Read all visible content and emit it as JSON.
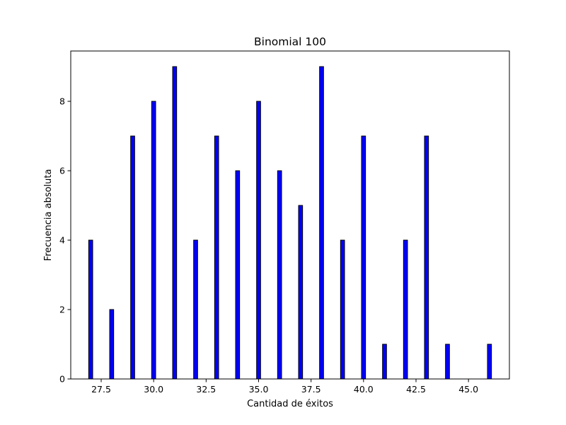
{
  "chart_data": {
    "type": "bar",
    "title": "Binomial 100",
    "xlabel": "Cantidad de éxitos",
    "ylabel": "Frecuencia absoluta",
    "x": [
      27,
      28,
      29,
      30,
      31,
      32,
      33,
      34,
      35,
      36,
      37,
      38,
      39,
      40,
      41,
      42,
      43,
      44,
      46
    ],
    "values": [
      4,
      2,
      7,
      8,
      9,
      4,
      7,
      6,
      8,
      6,
      5,
      9,
      4,
      7,
      1,
      4,
      7,
      1,
      1
    ],
    "xlim": [
      26.05,
      46.95
    ],
    "ylim": [
      0,
      9.45
    ],
    "xticks": [
      27.5,
      30,
      32.5,
      35,
      37.5,
      40,
      42.5,
      45
    ],
    "xtick_labels": [
      "27.5",
      "30.0",
      "32.5",
      "35.0",
      "37.5",
      "40.0",
      "42.5",
      "45.0"
    ],
    "yticks": [
      0,
      2,
      4,
      6,
      8
    ],
    "ytick_labels": [
      "0",
      "2",
      "4",
      "6",
      "8"
    ],
    "bar_color": "#0000ff",
    "edge_color": "#000000",
    "grid": false,
    "legend": "none"
  }
}
